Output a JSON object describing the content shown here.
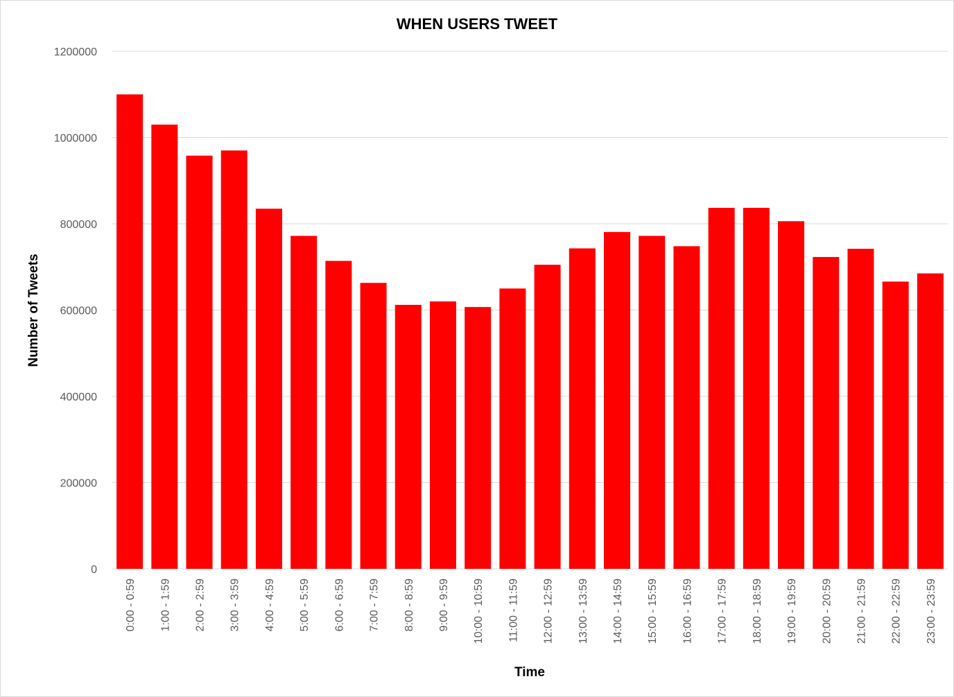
{
  "chart_data": {
    "type": "bar",
    "title": "WHEN USERS TWEET",
    "xlabel": "Time",
    "ylabel": "Number of  Tweets",
    "ylim": [
      0,
      1200000
    ],
    "yticks": [
      "0",
      "200000",
      "400000",
      "600000",
      "800000",
      "1000000",
      "1200000"
    ],
    "grid": true,
    "bar_color": "#ff0000",
    "categories": [
      "0:00 - 0:59",
      "1:00 - 1:59",
      "2:00 - 2:59",
      "3:00 - 3:59",
      "4:00 - 4:59",
      "5:00 - 5:59",
      "6:00 - 6:59",
      "7:00 - 7:59",
      "8:00 - 8:59",
      "9:00 - 9:59",
      "10:00 - 10:59",
      "11:00 - 11:59",
      "12:00 - 12:59",
      "13:00 - 13:59",
      "14:00 - 14:59",
      "15:00 - 15:59",
      "16:00 - 16:59",
      "17:00 - 17:59",
      "18:00 - 18:59",
      "19:00 - 19:59",
      "20:00 - 20:59",
      "21:00 - 21:59",
      "22:00 - 22:59",
      "23:00 - 23:59"
    ],
    "values": [
      1100000,
      1030000,
      958000,
      970000,
      835000,
      772000,
      714000,
      663000,
      612000,
      620000,
      607000,
      650000,
      705000,
      743000,
      781000,
      772000,
      748000,
      837000,
      837000,
      806000,
      723000,
      742000,
      666000,
      685000
    ]
  }
}
